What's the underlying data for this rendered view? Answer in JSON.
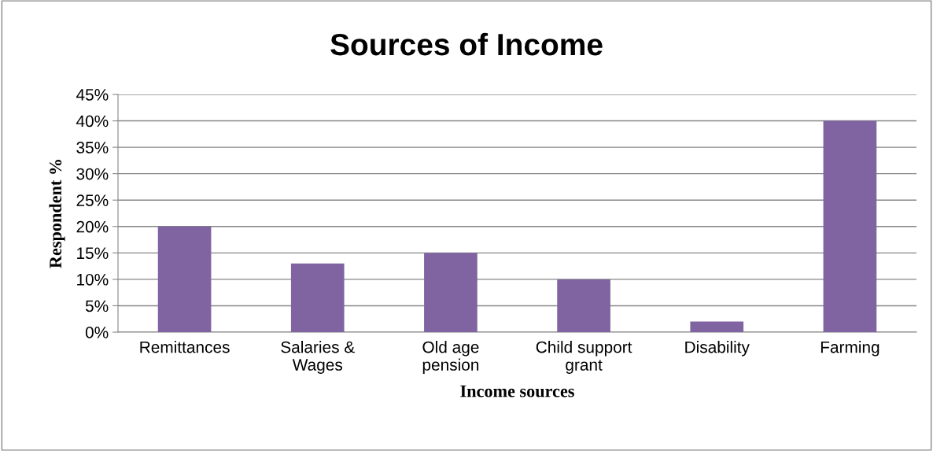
{
  "chart_data": {
    "type": "bar",
    "title": "Sources of Income",
    "xlabel": "Income sources",
    "ylabel": "Respondent %",
    "categories": [
      "Remittances",
      "Salaries &\nWages",
      "Old age\npension",
      "Child support\ngrant",
      "Disability",
      "Farming"
    ],
    "values": [
      20,
      13,
      15,
      10,
      2,
      40
    ],
    "color": "#8064a2",
    "ylim": [
      0,
      45
    ],
    "yticks": [
      {
        "value": 0,
        "label": "0%"
      },
      {
        "value": 5,
        "label": "5%"
      },
      {
        "value": 10,
        "label": "10%"
      },
      {
        "value": 15,
        "label": "15%"
      },
      {
        "value": 20,
        "label": "20%"
      },
      {
        "value": 25,
        "label": "25%"
      },
      {
        "value": 30,
        "label": "30%"
      },
      {
        "value": 35,
        "label": "35%"
      },
      {
        "value": 40,
        "label": "40%"
      },
      {
        "value": 45,
        "label": "45%"
      }
    ],
    "grid": "y",
    "legend": false
  }
}
